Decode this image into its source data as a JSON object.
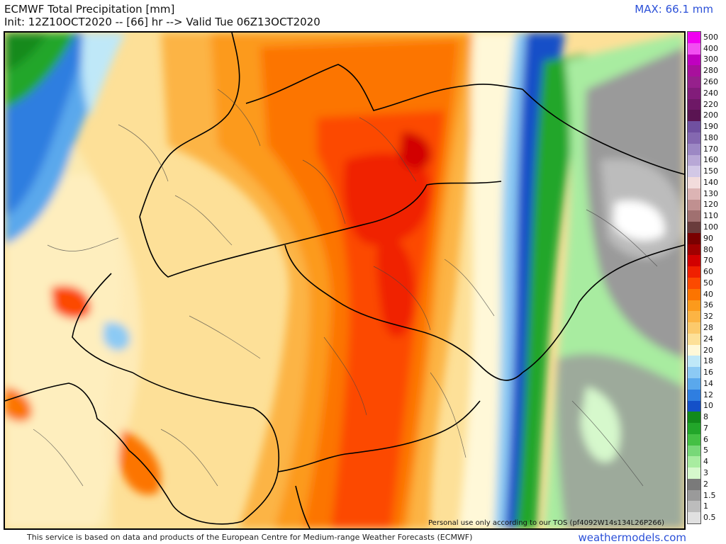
{
  "header": {
    "title": "ECMWF Total Precipitation [mm]",
    "subtitle": "Init: 12Z10OCT2020 -- [66] hr --> Valid Tue 06Z13OCT2020",
    "max_label": "MAX: 66.1 mm"
  },
  "map": {
    "tos_notice": "Personal use only according to our TOS (pf4092W14s134L26P266)"
  },
  "legend": {
    "levels": [
      {
        "label": "500",
        "color": "#f000f0"
      },
      {
        "label": "400",
        "color": "#f24ff2"
      },
      {
        "label": "300",
        "color": "#c000c0"
      },
      {
        "label": "280",
        "color": "#a8109c"
      },
      {
        "label": "260",
        "color": "#96208c"
      },
      {
        "label": "240",
        "color": "#821c7a"
      },
      {
        "label": "220",
        "color": "#6e1866"
      },
      {
        "label": "200",
        "color": "#5a1452"
      },
      {
        "label": "190",
        "color": "#7050a0"
      },
      {
        "label": "180",
        "color": "#8468b0"
      },
      {
        "label": "170",
        "color": "#9c88c4"
      },
      {
        "label": "160",
        "color": "#b8a8d6"
      },
      {
        "label": "150",
        "color": "#d2c8e6"
      },
      {
        "label": "140",
        "color": "#f2dcdc"
      },
      {
        "label": "130",
        "color": "#dcb4b4"
      },
      {
        "label": "120",
        "color": "#c09090"
      },
      {
        "label": "110",
        "color": "#a07070"
      },
      {
        "label": "100",
        "color": "#6a3c3c"
      },
      {
        "label": "90",
        "color": "#7a0000"
      },
      {
        "label": "80",
        "color": "#a00000"
      },
      {
        "label": "70",
        "color": "#d20000"
      },
      {
        "label": "60",
        "color": "#f02000"
      },
      {
        "label": "50",
        "color": "#fc4a00"
      },
      {
        "label": "40",
        "color": "#fc7400"
      },
      {
        "label": "36",
        "color": "#fc9a1c"
      },
      {
        "label": "32",
        "color": "#fcb444"
      },
      {
        "label": "28",
        "color": "#fcca6c"
      },
      {
        "label": "24",
        "color": "#fde098"
      },
      {
        "label": "20",
        "color": "#fff8d8"
      },
      {
        "label": "18",
        "color": "#bfe8f8"
      },
      {
        "label": "16",
        "color": "#8ccaf4"
      },
      {
        "label": "14",
        "color": "#5aa8ec"
      },
      {
        "label": "12",
        "color": "#2f7ee0"
      },
      {
        "label": "10",
        "color": "#1450c8"
      },
      {
        "label": "8",
        "color": "#128a1a"
      },
      {
        "label": "7",
        "color": "#22a62a"
      },
      {
        "label": "6",
        "color": "#44c044"
      },
      {
        "label": "5",
        "color": "#78d878"
      },
      {
        "label": "4",
        "color": "#a8eca0"
      },
      {
        "label": "3",
        "color": "#d6f8cc"
      },
      {
        "label": "2",
        "color": "#7a7a7a"
      },
      {
        "label": "1.5",
        "color": "#9a9a9a"
      },
      {
        "label": "1",
        "color": "#bcbcbc"
      },
      {
        "label": "0.5",
        "color": "#e0e0e0"
      }
    ]
  },
  "footer": {
    "credit": "This service is based on data and products of the European Centre for Medium-range Weather Forecasts (ECMWF)",
    "brand": "weathermodels.com"
  }
}
